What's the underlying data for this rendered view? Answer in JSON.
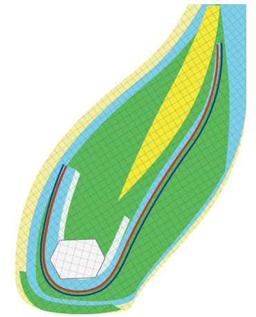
{
  "figure": {
    "kind": "finite-element-mesh",
    "colors": {
      "background": "#ffffff",
      "outer_band": "#f4ef9e",
      "cyan_band": "#7cd0e8",
      "green_fill": "#5cba5a",
      "yellow_wedge": "#f2e93a",
      "red_line": "#c0392b",
      "navy_line": "#1f3c88",
      "hex_insert": "#f4f4f4",
      "grid_line": "#2f4f2f"
    },
    "regions": [
      "outer-yellow-band",
      "outer-cyan-band",
      "green-core",
      "yellow-wedge",
      "inner-cyan-band",
      "red-boundary-line",
      "navy-boundary-line",
      "hexagonal-insert"
    ]
  }
}
